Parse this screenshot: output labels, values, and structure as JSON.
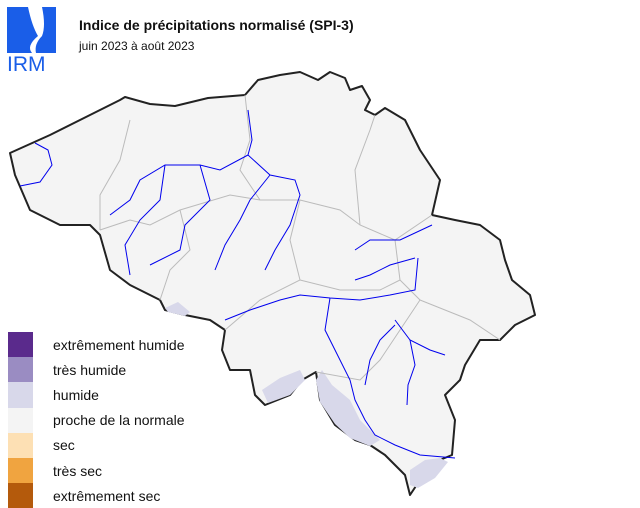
{
  "logo": {
    "text": "IRM",
    "color": "#1a5ee8"
  },
  "header": {
    "title": "Indice de précipitations normalisé (SPI-3)",
    "subtitle": "juin 2023 à août 2023"
  },
  "map": {
    "region": "Belgique",
    "background_class": "proche de la normale",
    "colors": {
      "land": "#f4f4f4",
      "border": "#222222",
      "provinces": "#bbbbbb",
      "rivers": "#0000ee",
      "humide": "#d8d8ea"
    }
  },
  "legend": [
    {
      "label": "extrêmement humide",
      "color": "#5a2a8c"
    },
    {
      "label": "très humide",
      "color": "#9a8cc2"
    },
    {
      "label": "humide",
      "color": "#d8d8ea"
    },
    {
      "label": "proche de la normale",
      "color": "#f4f4f4"
    },
    {
      "label": "sec",
      "color": "#fde0b4"
    },
    {
      "label": "très sec",
      "color": "#f0a440"
    },
    {
      "label": "extrêmement sec",
      "color": "#b45a0c"
    }
  ]
}
